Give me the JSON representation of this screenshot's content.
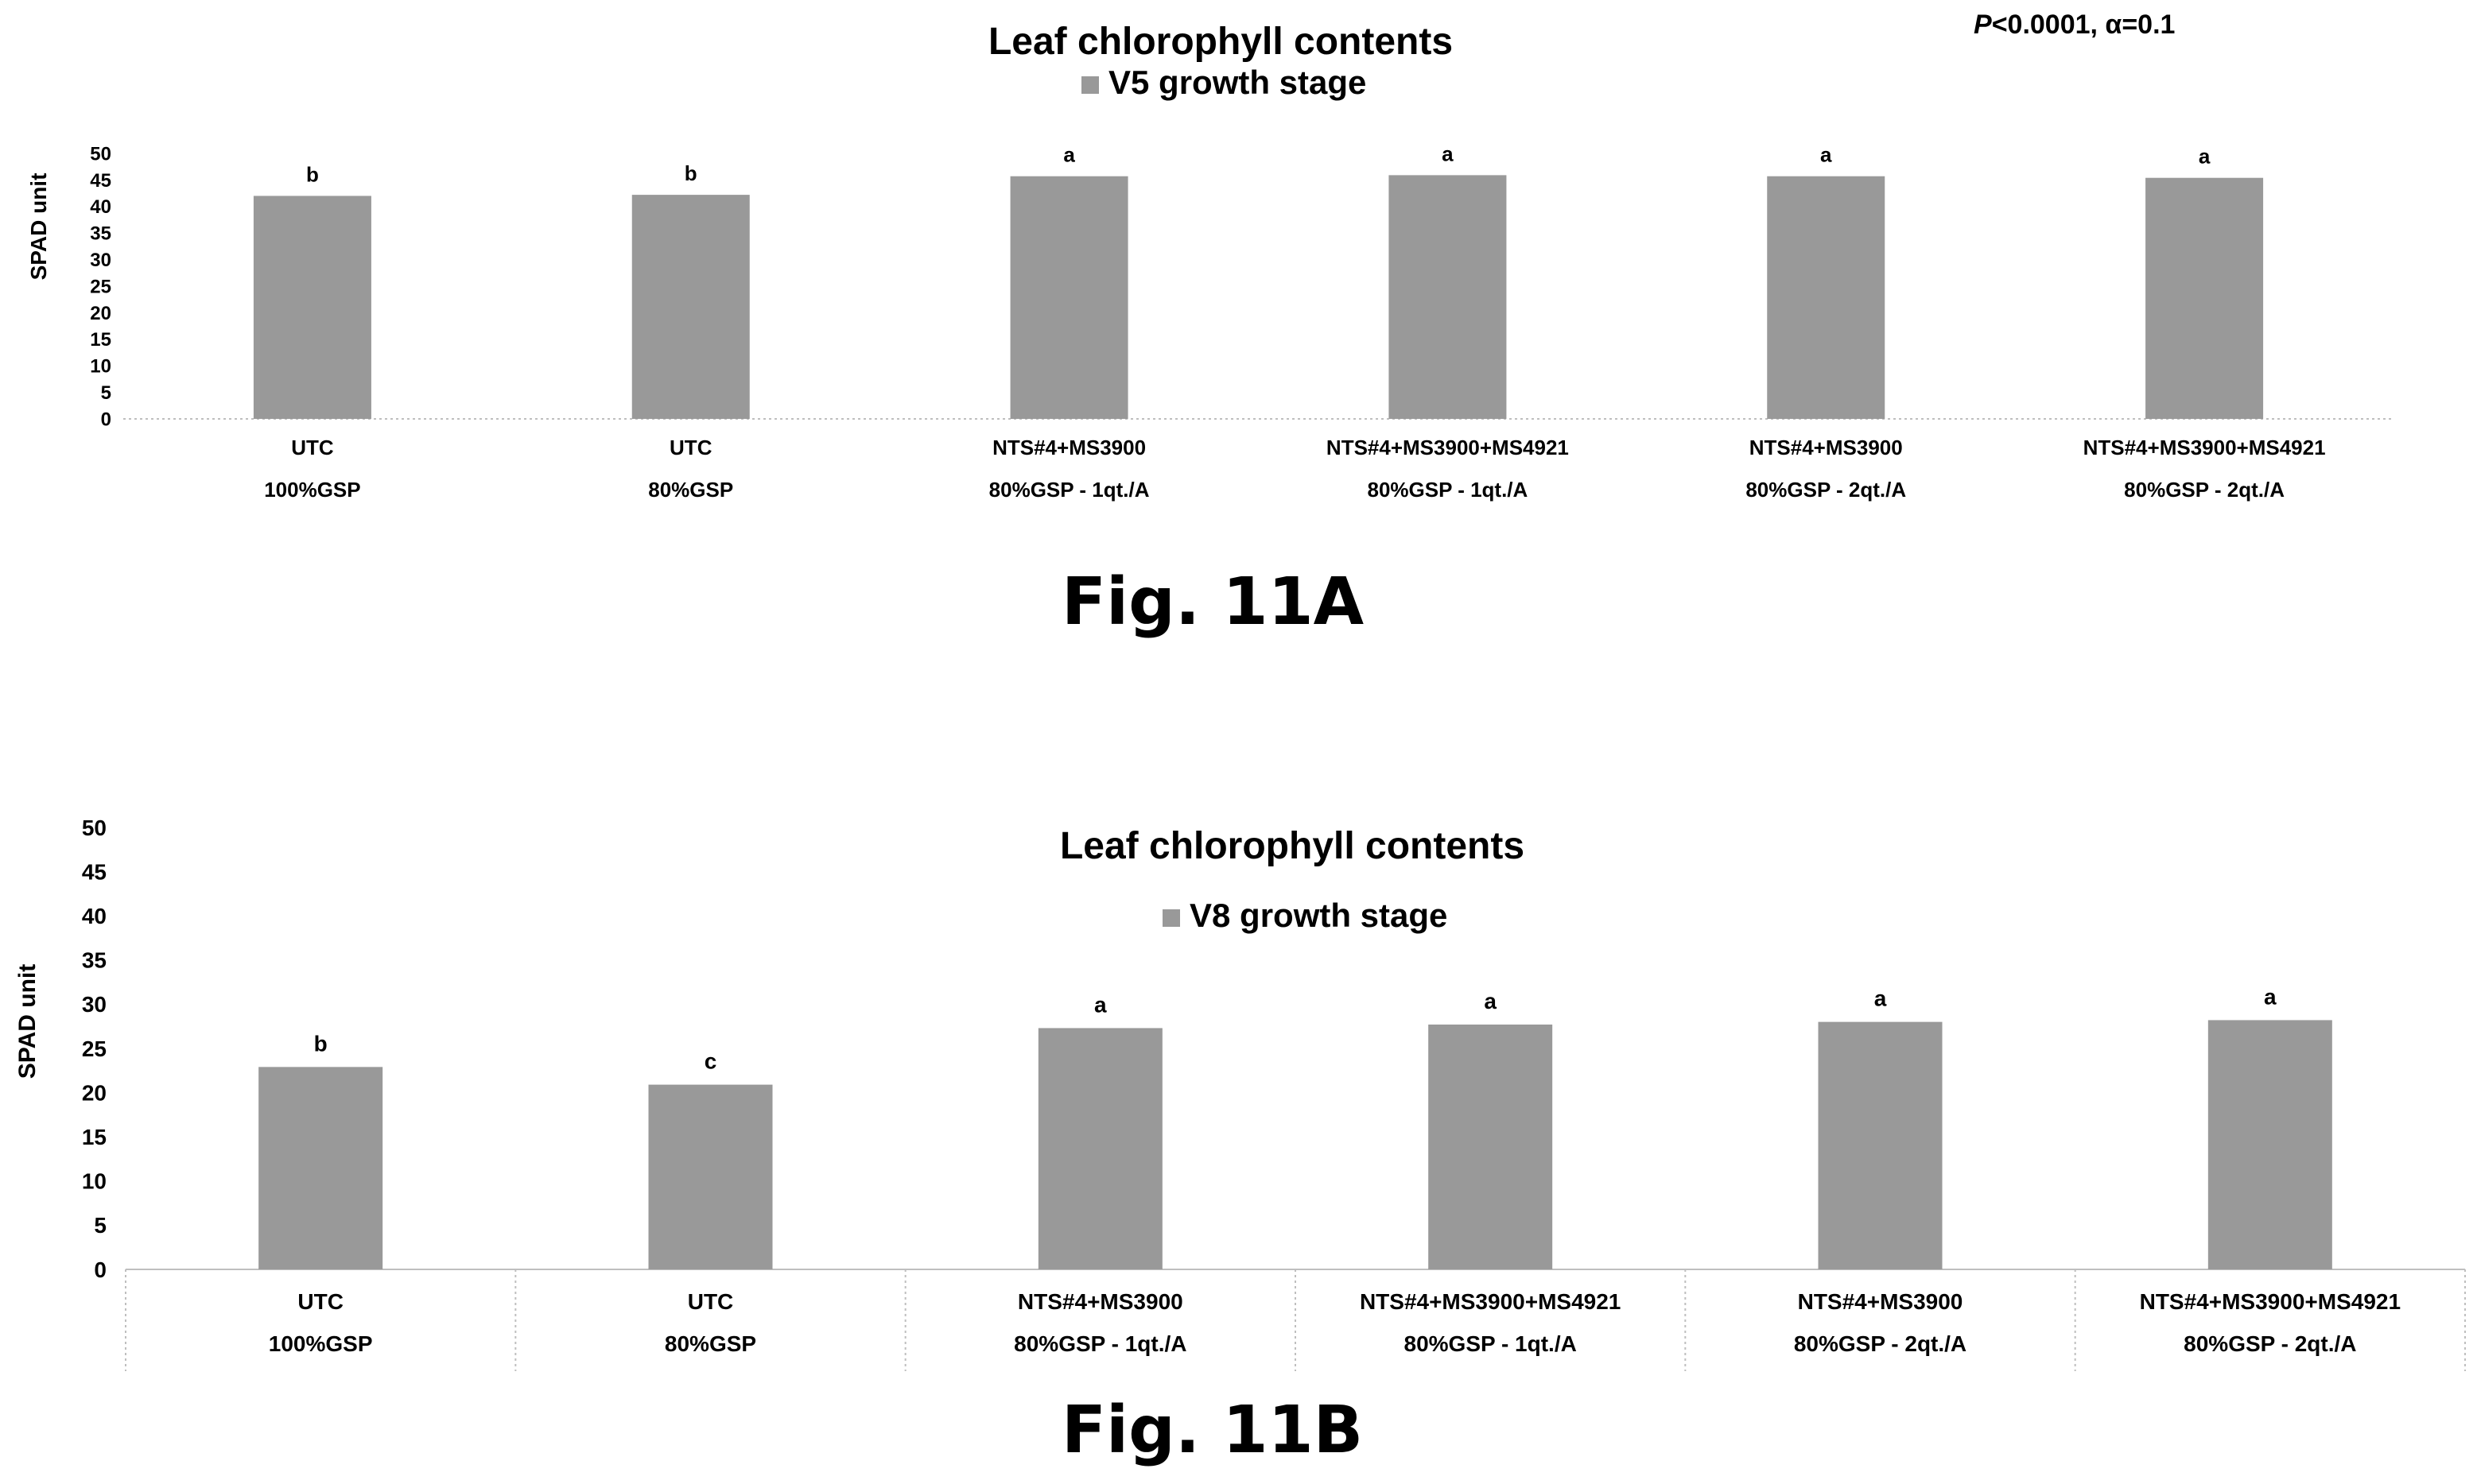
{
  "pvalue_note": {
    "p_symbol": "P",
    "rest": "<0.0001, α=0.1"
  },
  "figures": {
    "a_caption": "Fig. 11A",
    "b_caption": "Fig. 11B"
  },
  "colors": {
    "bar": "#999999",
    "axis": "#bfbfbf",
    "text": "#000000"
  },
  "chart_data": [
    {
      "type": "bar",
      "title": "Leaf chlorophyll contents",
      "legend_entry": "V5 growth stage",
      "legend_position": "top",
      "ylabel": "SPAD unit",
      "ylim": [
        0,
        50
      ],
      "yticks": [
        "0",
        "5",
        "10",
        "15",
        "20",
        "25",
        "30",
        "35",
        "40",
        "45",
        "50"
      ],
      "categories": [
        [
          "UTC",
          "100%GSP"
        ],
        [
          "UTC",
          "80%GSP"
        ],
        [
          "NTS#4+MS3900",
          "80%GSP - 1qt./A"
        ],
        [
          "NTS#4+MS3900+MS4921",
          "80%GSP - 1qt./A"
        ],
        [
          "NTS#4+MS3900",
          "80%GSP - 2qt./A"
        ],
        [
          "NTS#4+MS3900+MS4921",
          "80%GSP - 2qt./A"
        ]
      ],
      "series": [
        {
          "name": "V5 growth stage",
          "values": [
            42.0,
            42.2,
            45.7,
            45.9,
            45.7,
            45.4
          ]
        }
      ],
      "data_labels": [
        "b",
        "b",
        "a",
        "a",
        "a",
        "a"
      ],
      "grid": false
    },
    {
      "type": "bar",
      "title": "Leaf chlorophyll contents",
      "legend_entry": "V8 growth stage",
      "legend_position": "top",
      "ylabel": "SPAD unit",
      "ylim": [
        0,
        50
      ],
      "yticks": [
        "0",
        "5",
        "10",
        "15",
        "20",
        "25",
        "30",
        "35",
        "40",
        "45",
        "50"
      ],
      "categories": [
        [
          "UTC",
          "100%GSP"
        ],
        [
          "UTC",
          "80%GSP"
        ],
        [
          "NTS#4+MS3900",
          "80%GSP - 1qt./A"
        ],
        [
          "NTS#4+MS3900+MS4921",
          "80%GSP - 1qt./A"
        ],
        [
          "NTS#4+MS3900",
          "80%GSP - 2qt./A"
        ],
        [
          "NTS#4+MS3900+MS4921",
          "80%GSP - 2qt./A"
        ]
      ],
      "series": [
        {
          "name": "V8 growth stage",
          "values": [
            22.9,
            20.9,
            27.3,
            27.7,
            28.0,
            28.2
          ]
        }
      ],
      "data_labels": [
        "b",
        "c",
        "a",
        "a",
        "a",
        "a"
      ],
      "grid": false
    }
  ]
}
